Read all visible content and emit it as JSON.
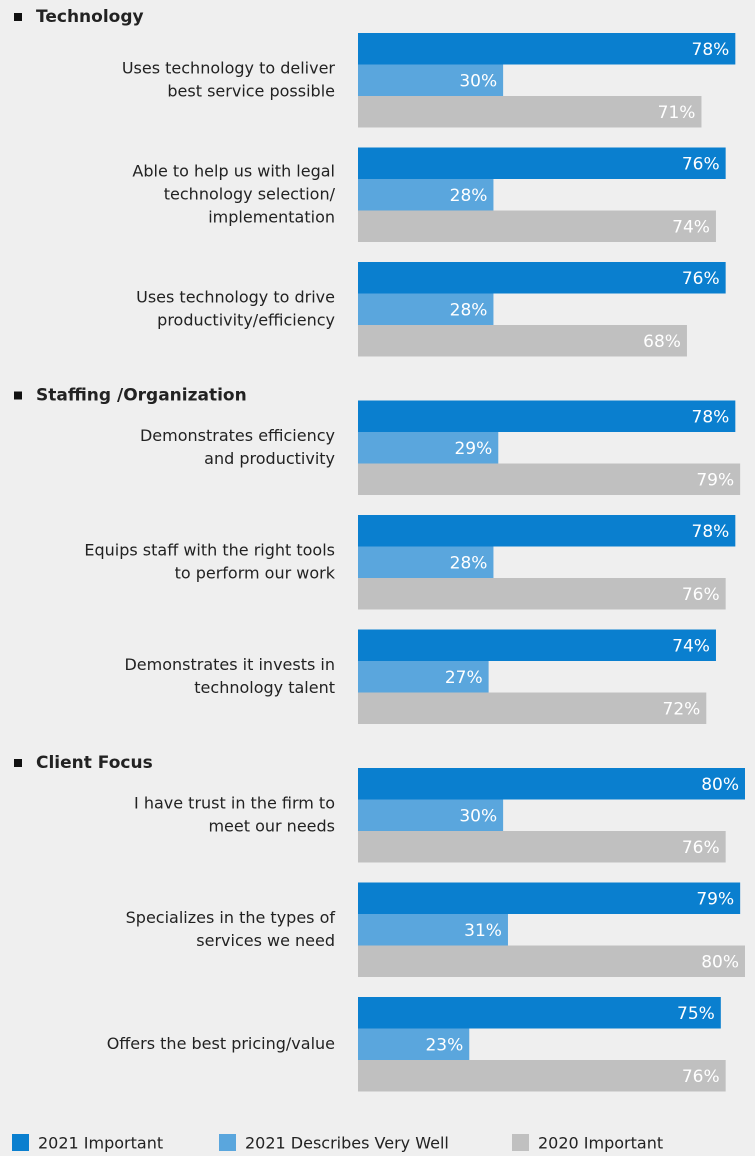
{
  "chart_data": {
    "type": "bar",
    "sections": [
      {
        "title": "Technology",
        "items": [
          {
            "label": [
              "Uses technology to deliver",
              "best service possible"
            ]
          },
          {
            "label": [
              "Able to help us with legal",
              "technology selection/",
              "implementation"
            ]
          },
          {
            "label": [
              "Uses technology to drive",
              "productivity/efficiency"
            ]
          }
        ]
      },
      {
        "title": "Staffing /Organization",
        "items": [
          {
            "label": [
              "Demonstrates efficiency",
              "and productivity"
            ]
          },
          {
            "label": [
              "Equips staff with the right tools",
              "to perform our work"
            ]
          },
          {
            "label": [
              "Demonstrates it invests in",
              "technology talent"
            ]
          }
        ]
      },
      {
        "title": "Client Focus",
        "items": [
          {
            "label": [
              "I have trust in the firm to",
              "meet our needs"
            ]
          },
          {
            "label": [
              "Specializes in the types of",
              "services we need"
            ]
          },
          {
            "label": [
              "Offers the best pricing/value"
            ]
          }
        ]
      }
    ],
    "series": [
      {
        "name": "2021 Important",
        "color": "#0a7fcf",
        "values": [
          78,
          76,
          76,
          78,
          78,
          74,
          80,
          79,
          75
        ],
        "value_labels": [
          "78%",
          "76%",
          "76%",
          "78%",
          "78%",
          "74%",
          "80%",
          "79%",
          "75%"
        ]
      },
      {
        "name": "2021 Describes Very Well",
        "color": "#5aa6dd",
        "values": [
          30,
          28,
          28,
          29,
          28,
          27,
          30,
          31,
          23
        ],
        "value_labels": [
          "30%",
          "28%",
          "28%",
          "29%",
          "28%",
          "27%",
          "30%",
          "31%",
          "23%"
        ]
      },
      {
        "name": "2020 Important",
        "color": "#c0c0c0",
        "values": [
          71,
          74,
          68,
          79,
          76,
          72,
          76,
          80,
          76
        ],
        "value_labels": [
          "71%",
          "74%",
          "68%",
          "79%",
          "76%",
          "72%",
          "76%",
          "80%",
          "76%"
        ]
      }
    ]
  }
}
